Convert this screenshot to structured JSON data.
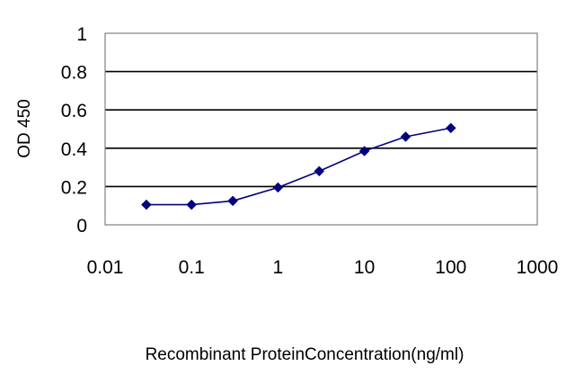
{
  "chart_data": {
    "type": "line",
    "title": "",
    "xlabel": "Recombinant ProteinConcentration(ng/ml)",
    "ylabel": "OD 450",
    "xscale": "log",
    "xlim": [
      0.01,
      1000
    ],
    "ylim": [
      0,
      1
    ],
    "x_ticks": [
      "0.01",
      "0.1",
      "1",
      "10",
      "100",
      "1000"
    ],
    "y_ticks": [
      "0",
      "0.2",
      "0.4",
      "0.6",
      "0.8",
      "1"
    ],
    "grid": "horizontal",
    "legend": "none",
    "colors": {
      "line": "#00007f",
      "marker": "#00007f",
      "grid": "#000000",
      "plot_border": "#808080"
    },
    "series": [
      {
        "x": [
          0.03,
          0.1,
          0.3,
          1,
          3,
          10,
          30,
          100
        ],
        "y": [
          0.105,
          0.105,
          0.125,
          0.195,
          0.28,
          0.385,
          0.46,
          0.505
        ]
      }
    ]
  }
}
